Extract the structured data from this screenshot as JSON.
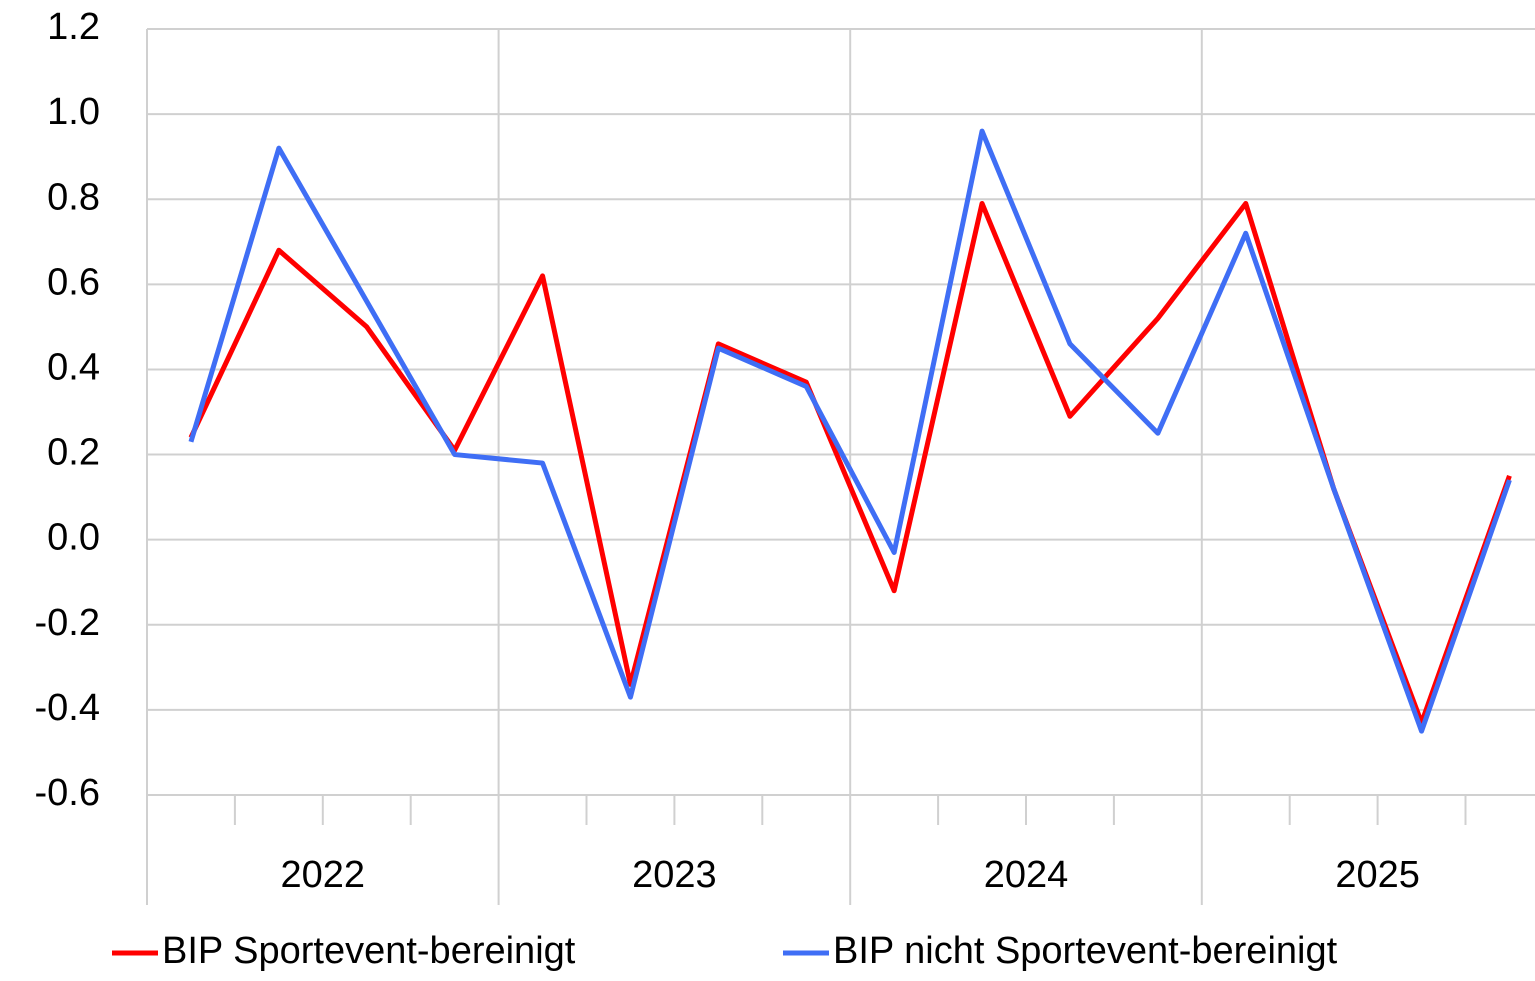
{
  "chart_data": {
    "type": "line",
    "categories": [
      null,
      null,
      null,
      null,
      null,
      null,
      null,
      null,
      null,
      null,
      null,
      null,
      null,
      null,
      null,
      null
    ],
    "years": [
      "2022",
      "2023",
      "2024",
      "2025"
    ],
    "series": [
      {
        "name": "BIP Sportevent-bereinigt",
        "color": "#ff0000",
        "values": [
          0.24,
          0.68,
          0.5,
          0.21,
          0.62,
          -0.34,
          0.46,
          0.37,
          -0.12,
          0.79,
          0.29,
          0.52,
          0.79,
          0.12,
          -0.43,
          0.15
        ]
      },
      {
        "name": "BIP nicht Sportevent-bereinigt",
        "color": "#3f6ef5",
        "values": [
          0.23,
          0.92,
          0.56,
          0.2,
          0.18,
          -0.37,
          0.45,
          0.36,
          -0.03,
          0.96,
          0.46,
          0.25,
          0.72,
          0.12,
          -0.45,
          0.14
        ]
      }
    ],
    "ylim": [
      -0.6,
      1.2
    ],
    "yticks": [
      -0.6,
      -0.4,
      -0.2,
      {
        "value": 0,
        "label": "0.0"
      },
      0.2,
      0.4,
      0.6,
      0.8,
      {
        "value": 1,
        "label": "1.0"
      },
      1.2
    ],
    "grid": true
  }
}
